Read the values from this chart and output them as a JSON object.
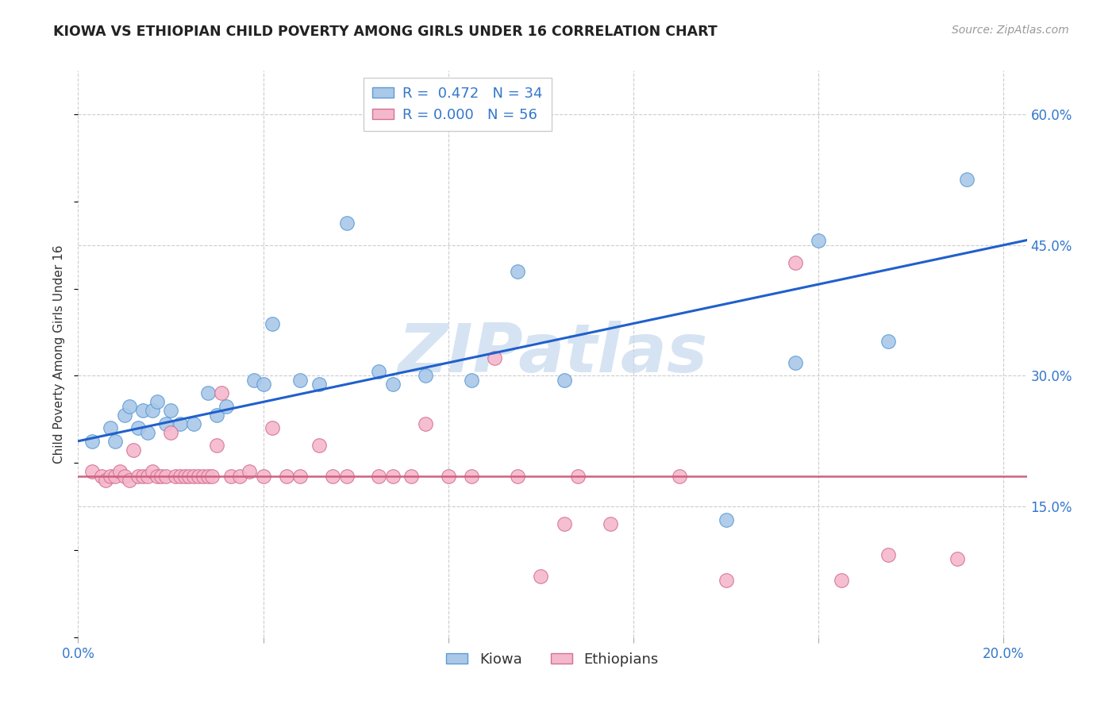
{
  "title": "KIOWA VS ETHIOPIAN CHILD POVERTY AMONG GIRLS UNDER 16 CORRELATION CHART",
  "source": "Source: ZipAtlas.com",
  "ylabel": "Child Poverty Among Girls Under 16",
  "xlim": [
    0.0,
    0.205
  ],
  "ylim": [
    0.0,
    0.65
  ],
  "xticks": [
    0.0,
    0.04,
    0.08,
    0.12,
    0.16,
    0.2
  ],
  "ytick_positions": [
    0.15,
    0.3,
    0.45,
    0.6
  ],
  "ytick_labels": [
    "15.0%",
    "30.0%",
    "45.0%",
    "60.0%"
  ],
  "xtick_labels": [
    "0.0%",
    "",
    "",
    "",
    "",
    "20.0%"
  ],
  "kiowa_R": 0.472,
  "kiowa_N": 34,
  "ethiopians_R": 0.0,
  "ethiopians_N": 56,
  "kiowa_color": "#aac8e8",
  "kiowa_edge_color": "#5b9bd5",
  "ethiopians_color": "#f4b8cc",
  "ethiopians_edge_color": "#d47090",
  "trend_kiowa_color": "#2060cc",
  "trend_ethiopians_color": "#d06080",
  "watermark_text": "ZIPatlas",
  "watermark_color": "#c5d8ed",
  "background_color": "#ffffff",
  "grid_color": "#cccccc",
  "text_color_blue": "#3377cc",
  "title_color": "#222222",
  "source_color": "#999999",
  "trend_kiowa_intercept": 0.225,
  "trend_kiowa_slope": 1.125,
  "trend_ethiopians_y": 0.185,
  "kiowa_x": [
    0.003,
    0.007,
    0.008,
    0.01,
    0.011,
    0.013,
    0.014,
    0.015,
    0.016,
    0.017,
    0.019,
    0.02,
    0.022,
    0.025,
    0.028,
    0.03,
    0.032,
    0.038,
    0.04,
    0.042,
    0.048,
    0.052,
    0.058,
    0.065,
    0.068,
    0.075,
    0.085,
    0.095,
    0.105,
    0.14,
    0.155,
    0.16,
    0.175,
    0.192
  ],
  "kiowa_y": [
    0.225,
    0.24,
    0.225,
    0.255,
    0.265,
    0.24,
    0.26,
    0.235,
    0.26,
    0.27,
    0.245,
    0.26,
    0.245,
    0.245,
    0.28,
    0.255,
    0.265,
    0.295,
    0.29,
    0.36,
    0.295,
    0.29,
    0.475,
    0.305,
    0.29,
    0.3,
    0.295,
    0.42,
    0.295,
    0.135,
    0.315,
    0.455,
    0.34,
    0.525
  ],
  "ethiopians_x": [
    0.003,
    0.005,
    0.006,
    0.007,
    0.008,
    0.009,
    0.01,
    0.011,
    0.012,
    0.013,
    0.014,
    0.015,
    0.016,
    0.017,
    0.018,
    0.019,
    0.02,
    0.021,
    0.022,
    0.023,
    0.024,
    0.025,
    0.026,
    0.027,
    0.028,
    0.029,
    0.03,
    0.031,
    0.033,
    0.035,
    0.037,
    0.04,
    0.042,
    0.045,
    0.048,
    0.052,
    0.055,
    0.058,
    0.065,
    0.068,
    0.072,
    0.075,
    0.08,
    0.085,
    0.09,
    0.095,
    0.1,
    0.105,
    0.108,
    0.115,
    0.13,
    0.14,
    0.155,
    0.165,
    0.175,
    0.19
  ],
  "ethiopians_y": [
    0.19,
    0.185,
    0.18,
    0.185,
    0.185,
    0.19,
    0.185,
    0.18,
    0.215,
    0.185,
    0.185,
    0.185,
    0.19,
    0.185,
    0.185,
    0.185,
    0.235,
    0.185,
    0.185,
    0.185,
    0.185,
    0.185,
    0.185,
    0.185,
    0.185,
    0.185,
    0.22,
    0.28,
    0.185,
    0.185,
    0.19,
    0.185,
    0.24,
    0.185,
    0.185,
    0.22,
    0.185,
    0.185,
    0.185,
    0.185,
    0.185,
    0.245,
    0.185,
    0.185,
    0.32,
    0.185,
    0.07,
    0.13,
    0.185,
    0.13,
    0.185,
    0.065,
    0.43,
    0.065,
    0.095,
    0.09
  ]
}
